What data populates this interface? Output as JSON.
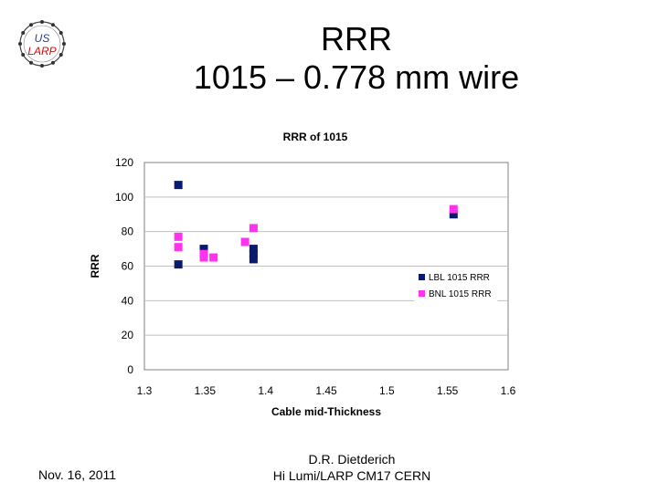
{
  "slide": {
    "title_line1": "RRR",
    "title_line2": "1015 – 0.778 mm wire",
    "logo": {
      "text_top": "US",
      "text_bottom": "LARP",
      "icon": "us-larp-logo"
    },
    "footer_date": "Nov. 16, 2011",
    "footer_author": "D.R. Dietderich",
    "footer_event": "Hi Lumi/LARP CM17 CERN"
  },
  "colors": {
    "lbl": "#0a1a6e",
    "bnl": "#ff33ee",
    "grid": "#c0c0c0"
  },
  "chart_data": {
    "type": "scatter",
    "title": "RRR of 1015",
    "xlabel": "Cable mid-Thickness",
    "ylabel": "RRR",
    "xlim": [
      1.3,
      1.6
    ],
    "ylim": [
      0,
      120
    ],
    "xticks": [
      1.3,
      1.35,
      1.4,
      1.45,
      1.5,
      1.55,
      1.6
    ],
    "xtick_labels": [
      "1.3",
      "1.35",
      "1.4",
      "1.45",
      "1.5",
      "1.55",
      "1.6"
    ],
    "yticks": [
      0,
      20,
      40,
      60,
      80,
      100,
      120
    ],
    "ytick_labels": [
      "0",
      "20",
      "40",
      "60",
      "80",
      "100",
      "120"
    ],
    "grid": "horizontal",
    "legend_position": "right",
    "series": [
      {
        "name": "LBL 1015 RRR",
        "points": [
          {
            "x": 1.328,
            "y": 107
          },
          {
            "x": 1.328,
            "y": 61
          },
          {
            "x": 1.349,
            "y": 70
          },
          {
            "x": 1.39,
            "y": 70
          },
          {
            "x": 1.39,
            "y": 67
          },
          {
            "x": 1.39,
            "y": 64
          },
          {
            "x": 1.555,
            "y": 90
          }
        ]
      },
      {
        "name": "BNL 1015 RRR",
        "points": [
          {
            "x": 1.328,
            "y": 77
          },
          {
            "x": 1.328,
            "y": 71
          },
          {
            "x": 1.349,
            "y": 67
          },
          {
            "x": 1.349,
            "y": 65
          },
          {
            "x": 1.357,
            "y": 65
          },
          {
            "x": 1.383,
            "y": 74
          },
          {
            "x": 1.39,
            "y": 82
          },
          {
            "x": 1.555,
            "y": 93
          }
        ]
      }
    ]
  }
}
